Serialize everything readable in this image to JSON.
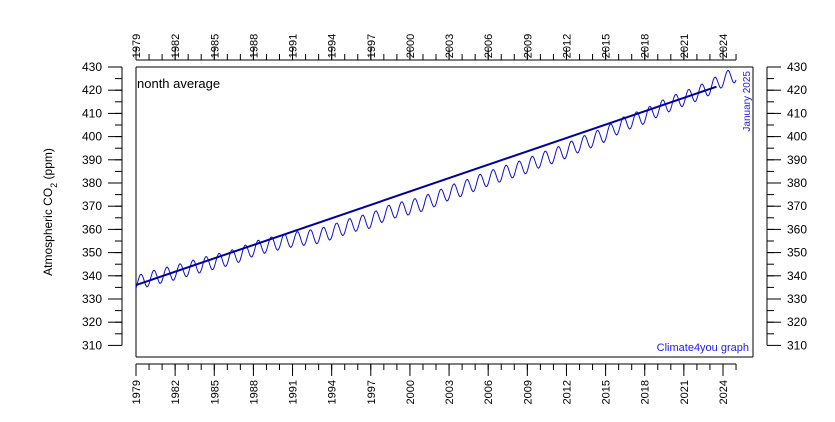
{
  "chart_data": {
    "type": "line",
    "ylabel_main": "Atmospheric CO",
    "ylabel_sub": "2",
    "ylabel_unit": " (ppm)",
    "series_label": "nonth average",
    "date_note": "January 2025",
    "credit": "Climate4you graph",
    "xlim": [
      1979,
      2026.3
    ],
    "ylim": [
      305,
      430
    ],
    "x_ticks": [
      1979,
      1982,
      1985,
      1988,
      1991,
      1994,
      1997,
      2000,
      2003,
      2006,
      2009,
      2012,
      2015,
      2018,
      2021,
      2024
    ],
    "y_ticks": [
      310,
      320,
      330,
      340,
      350,
      360,
      370,
      380,
      390,
      400,
      410,
      420,
      430
    ],
    "colors": {
      "monthly": "#1010d0",
      "trend": "#0000a0",
      "axis": "#000000",
      "annotation": "#1a1aff"
    },
    "series": [
      {
        "kind": "monthly",
        "seasonal_amplitude_ppm": 3.2,
        "annual_trend": [
          [
            1979,
            336.8
          ],
          [
            1980,
            338.7
          ],
          [
            1981,
            340.1
          ],
          [
            1982,
            341.4
          ],
          [
            1983,
            343.0
          ],
          [
            1984,
            344.6
          ],
          [
            1985,
            346.0
          ],
          [
            1986,
            347.4
          ],
          [
            1987,
            349.2
          ],
          [
            1988,
            351.6
          ],
          [
            1989,
            353.1
          ],
          [
            1990,
            354.4
          ],
          [
            1991,
            355.6
          ],
          [
            1992,
            356.4
          ],
          [
            1993,
            357.1
          ],
          [
            1994,
            358.8
          ],
          [
            1995,
            360.8
          ],
          [
            1996,
            362.6
          ],
          [
            1997,
            363.7
          ],
          [
            1998,
            366.6
          ],
          [
            1999,
            368.3
          ],
          [
            2000,
            369.5
          ],
          [
            2001,
            371.1
          ],
          [
            2002,
            373.2
          ],
          [
            2003,
            375.8
          ],
          [
            2004,
            377.5
          ],
          [
            2005,
            379.8
          ],
          [
            2006,
            381.9
          ],
          [
            2007,
            383.8
          ],
          [
            2008,
            385.6
          ],
          [
            2009,
            387.4
          ],
          [
            2010,
            389.9
          ],
          [
            2011,
            391.7
          ],
          [
            2012,
            393.9
          ],
          [
            2013,
            396.5
          ],
          [
            2014,
            398.6
          ],
          [
            2015,
            401.0
          ],
          [
            2016,
            404.4
          ],
          [
            2017,
            406.8
          ],
          [
            2018,
            408.7
          ],
          [
            2019,
            411.7
          ],
          [
            2020,
            414.2
          ],
          [
            2021,
            416.4
          ],
          [
            2022,
            418.5
          ],
          [
            2023,
            421.1
          ],
          [
            2024,
            424.6
          ],
          [
            2025.05,
            426.7
          ]
        ]
      },
      {
        "kind": "trend",
        "points": [
          [
            1979,
            336.0
          ],
          [
            2023.5,
            421.5
          ]
        ]
      }
    ]
  }
}
